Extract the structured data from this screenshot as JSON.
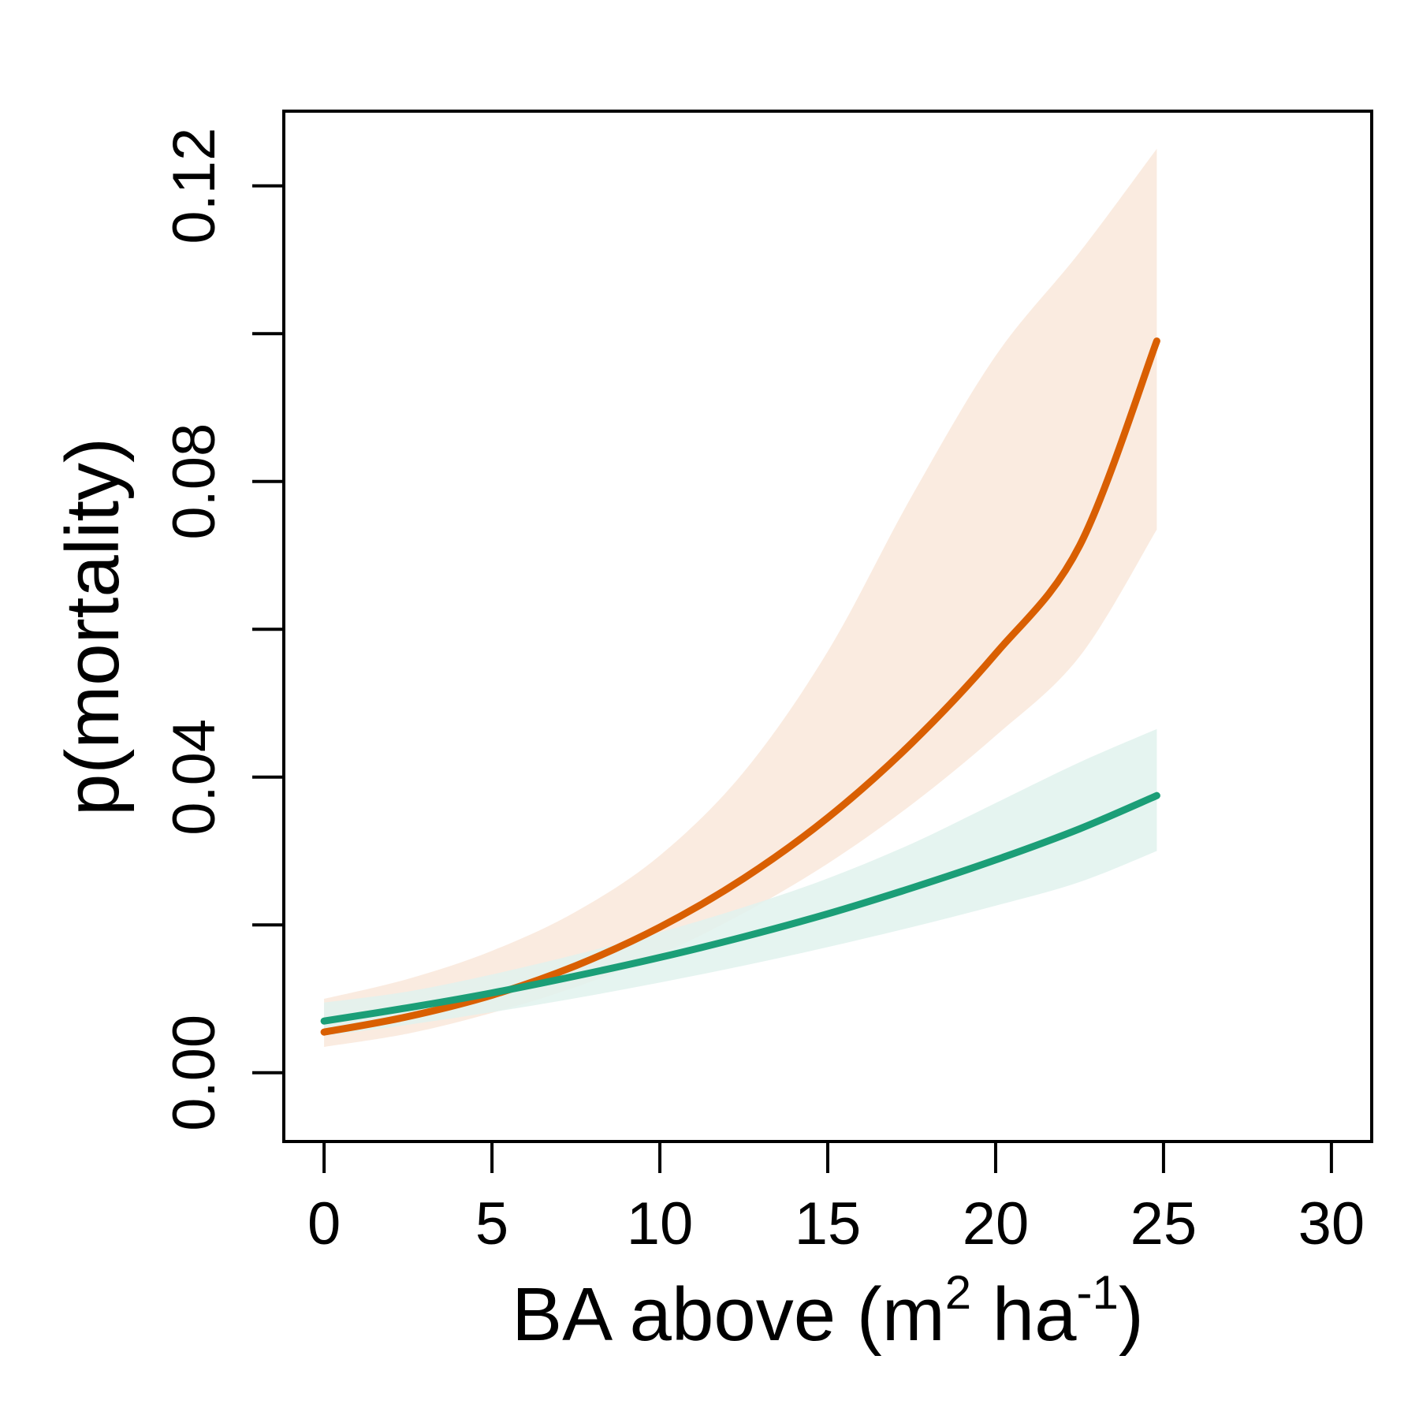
{
  "chart_data": {
    "type": "line",
    "xlabel": {
      "base": "BA above (m",
      "sup1": "2",
      "mid": " ha",
      "sup2": "-1",
      "end": ")"
    },
    "ylabel": "p(mortality)",
    "xlim": [
      -1.2,
      31.2
    ],
    "ylim": [
      -0.0093,
      0.1301
    ],
    "x_ticks": [
      0,
      5,
      10,
      15,
      20,
      25,
      30
    ],
    "x_tick_labels": [
      "0",
      "5",
      "10",
      "15",
      "20",
      "25",
      "30"
    ],
    "y_ticks": [
      0,
      0.02,
      0.04,
      0.06,
      0.08,
      0.1,
      0.12
    ],
    "y_tick_labels": [
      "0.00",
      "",
      "0.04",
      "",
      "0.08",
      "",
      "0.12"
    ],
    "grid": false,
    "legend": "none",
    "series": [
      {
        "color": "#d95f02",
        "band_color": "#f9e7db",
        "x": [
          0,
          2.5,
          5,
          7.5,
          10,
          12.5,
          15,
          17.5,
          20,
          22.5,
          24.8
        ],
        "y": [
          0.0055,
          0.0076,
          0.0105,
          0.0145,
          0.0197,
          0.0263,
          0.0345,
          0.0446,
          0.0567,
          0.0713,
          0.099
        ],
        "lower": [
          0.0035,
          0.0053,
          0.0081,
          0.0116,
          0.016,
          0.0216,
          0.0283,
          0.0363,
          0.0456,
          0.0563,
          0.0735
        ],
        "upper": [
          0.01,
          0.0127,
          0.0165,
          0.0218,
          0.0294,
          0.0407,
          0.057,
          0.078,
          0.097,
          0.111,
          0.125
        ]
      },
      {
        "color": "#1b9e77",
        "band_color": "#e1f2ed",
        "x": [
          0,
          2.5,
          5,
          7.5,
          10,
          12.5,
          15,
          17.5,
          20,
          22.5,
          24.8
        ],
        "y": [
          0.007,
          0.0088,
          0.0108,
          0.0131,
          0.0156,
          0.0184,
          0.0215,
          0.025,
          0.0288,
          0.033,
          0.0375
        ],
        "lower": [
          0.005,
          0.0065,
          0.0082,
          0.0101,
          0.0122,
          0.0145,
          0.017,
          0.0197,
          0.0226,
          0.0258,
          0.03
        ],
        "upper": [
          0.0095,
          0.011,
          0.0133,
          0.016,
          0.019,
          0.0224,
          0.0263,
          0.031,
          0.0365,
          0.042,
          0.0465
        ]
      }
    ]
  }
}
